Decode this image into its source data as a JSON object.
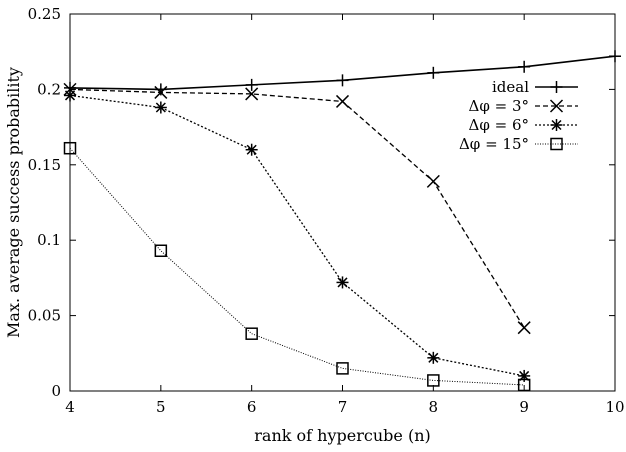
{
  "chart_data": {
    "type": "line",
    "xlabel": "rank of hypercube (n)",
    "ylabel": "Max. average success probability",
    "xlim": [
      4,
      10
    ],
    "ylim": [
      0,
      0.25
    ],
    "x_ticks": [
      "4",
      "5",
      "6",
      "7",
      "8",
      "9",
      "10"
    ],
    "y_ticks": [
      "0",
      "0.05",
      "0.1",
      "0.15",
      "0.2",
      "0.25"
    ],
    "grid": false,
    "legend_position": "top-right",
    "series": [
      {
        "name": "ideal",
        "marker": "plus",
        "line_style": "solid",
        "x": [
          4,
          5,
          6,
          7,
          8,
          9,
          10
        ],
        "y": [
          0.201,
          0.2,
          0.203,
          0.206,
          0.211,
          0.215,
          0.222
        ]
      },
      {
        "name": "Δφ = 3°",
        "marker": "cross",
        "line_style": "dashed",
        "x": [
          4,
          5,
          6,
          7,
          8,
          9
        ],
        "y": [
          0.2,
          0.198,
          0.197,
          0.192,
          0.139,
          0.042
        ]
      },
      {
        "name": "Δφ = 6°",
        "marker": "star",
        "line_style": "dotted",
        "x": [
          4,
          5,
          6,
          7,
          8,
          9
        ],
        "y": [
          0.196,
          0.188,
          0.16,
          0.072,
          0.022,
          0.01
        ]
      },
      {
        "name": "Δφ = 15°",
        "marker": "square",
        "line_style": "fine-dotted",
        "x": [
          4,
          5,
          6,
          7,
          8,
          9
        ],
        "y": [
          0.161,
          0.093,
          0.038,
          0.015,
          0.007,
          0.004
        ]
      }
    ]
  }
}
